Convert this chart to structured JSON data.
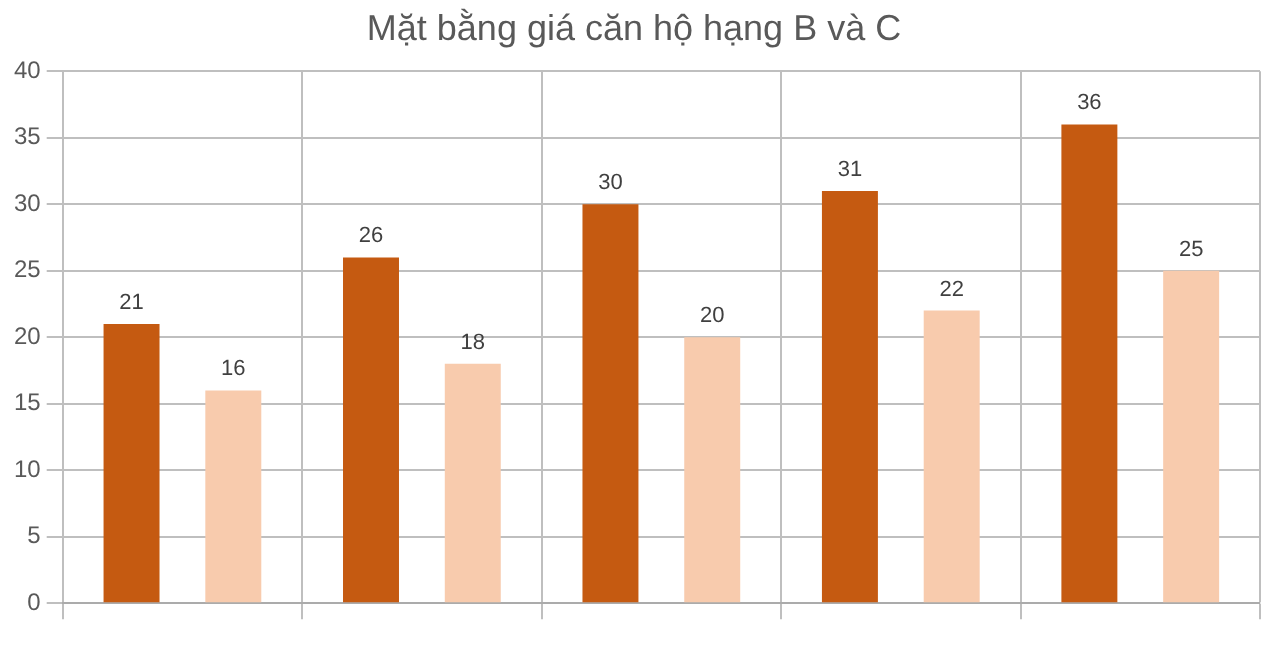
{
  "chart_data": {
    "type": "bar",
    "title": "Mặt bằng giá căn hộ hạng B và C",
    "categories": [
      null,
      null,
      null,
      null,
      null
    ],
    "series": [
      {
        "color": "#c55a11",
        "values": [
          21,
          26,
          30,
          31,
          36
        ]
      },
      {
        "color": "#f8cbad",
        "values": [
          16,
          18,
          20,
          22,
          25
        ]
      }
    ],
    "ylim": [
      0,
      40
    ],
    "yticks": [
      0,
      5,
      10,
      15,
      20,
      25,
      30,
      35,
      40
    ],
    "grid": true,
    "data_labels": true,
    "legend": false
  }
}
